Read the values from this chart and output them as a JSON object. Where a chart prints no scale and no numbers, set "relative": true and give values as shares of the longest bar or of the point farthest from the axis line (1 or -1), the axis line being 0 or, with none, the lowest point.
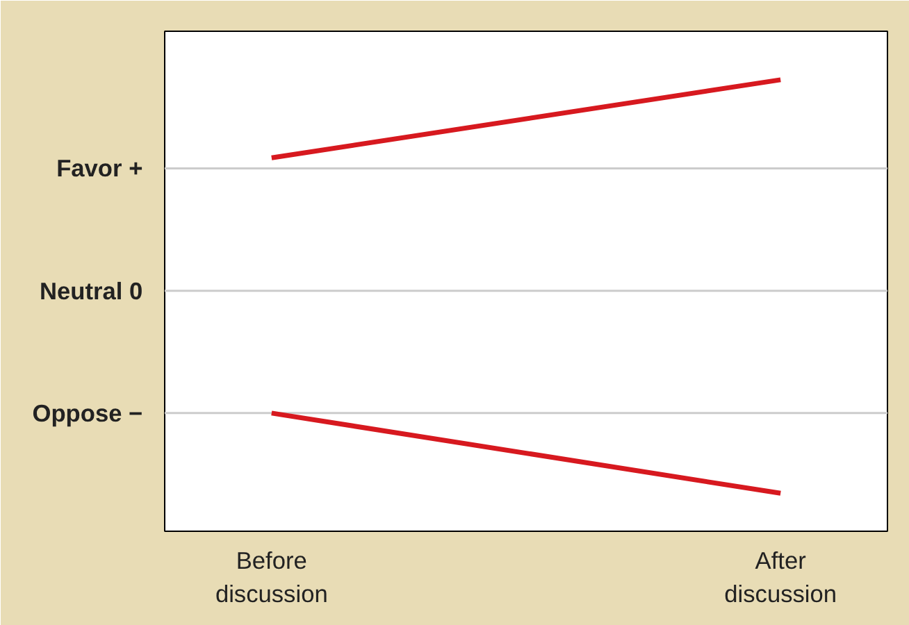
{
  "chart_data": {
    "type": "line",
    "relative": true,
    "categories": [
      "Before\ndiscussion",
      "After\ndiscussion"
    ],
    "series": [
      {
        "color": "#d7191f",
        "values": [
          0.63,
          1
        ]
      },
      {
        "color": "#d7191f",
        "values": [
          -0.58,
          -0.96
        ]
      }
    ],
    "ref_lines": [
      {
        "axis": "y",
        "value": 0.58,
        "label": "Favor  +",
        "color": "#cccccc"
      },
      {
        "axis": "y",
        "value": 0,
        "label": "Neutral  0",
        "color": "#cccccc"
      },
      {
        "axis": "y",
        "value": -0.58,
        "label": "Oppose  −",
        "color": "#cccccc"
      }
    ],
    "marker": "none",
    "line_style": "solid"
  }
}
